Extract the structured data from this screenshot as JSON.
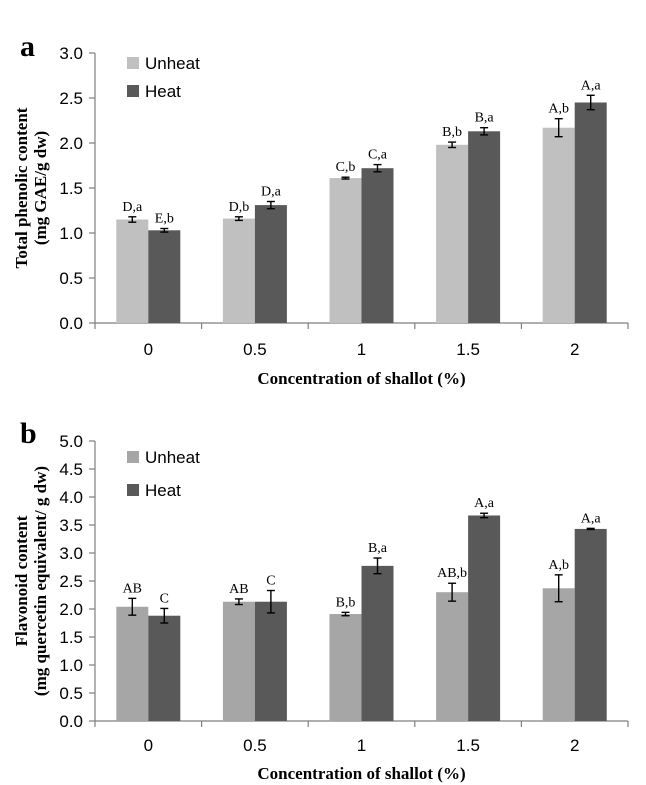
{
  "chart_data": [
    {
      "type": "bar",
      "panel_label": "a",
      "categories": [
        "0",
        "0.5",
        "1",
        "1.5",
        "2"
      ],
      "series": [
        {
          "name": "Unheat",
          "color": "#c0c0c0",
          "values": [
            1.15,
            1.16,
            1.61,
            1.98,
            2.17
          ],
          "errors": [
            0.03,
            0.02,
            0.01,
            0.03,
            0.1
          ],
          "labels": [
            "D,a",
            "D,b",
            "C,b",
            "B,b",
            "A,b"
          ]
        },
        {
          "name": "Heat",
          "color": "#595959",
          "values": [
            1.03,
            1.31,
            1.72,
            2.13,
            2.45
          ],
          "errors": [
            0.02,
            0.04,
            0.04,
            0.04,
            0.08
          ],
          "labels": [
            "E,b",
            "D,a",
            "C,a",
            "B,a",
            "A,a"
          ]
        }
      ],
      "ylim": [
        0,
        3.0
      ],
      "yticks": [
        "0.0",
        "0.5",
        "1.0",
        "1.5",
        "2.0",
        "2.5",
        "3.0"
      ],
      "xlabel": "Concentration of  shallot (%)",
      "ylabel_line1": "Total phenolic content",
      "ylabel_line2": "(mg GAE/g dw)",
      "legend": "top-left"
    },
    {
      "type": "bar",
      "panel_label": "b",
      "categories": [
        "0",
        "0.5",
        "1",
        "1.5",
        "2"
      ],
      "series": [
        {
          "name": "Unheat",
          "color": "#a6a6a6",
          "values": [
            2.04,
            2.13,
            1.91,
            2.3,
            2.37
          ],
          "errors": [
            0.15,
            0.05,
            0.03,
            0.16,
            0.24
          ],
          "labels": [
            "AB",
            "AB",
            "B,b",
            "AB,b",
            "A,b"
          ]
        },
        {
          "name": "Heat",
          "color": "#595959",
          "values": [
            1.88,
            2.13,
            2.77,
            3.67,
            3.43
          ],
          "errors": [
            0.13,
            0.2,
            0.14,
            0.04,
            0.01
          ],
          "labels": [
            "C",
            "C",
            "B,a",
            "A,a",
            "A,a"
          ]
        }
      ],
      "ylim": [
        0,
        5.0
      ],
      "yticks": [
        "0.0",
        "0.5",
        "1.0",
        "1.5",
        "2.0",
        "2.5",
        "3.0",
        "3.5",
        "4.0",
        "4.5",
        "5.0"
      ],
      "xlabel": "Concentration of  shallot (%)",
      "ylabel_line1": "Flavonoid content",
      "ylabel_line2": "(mg quercetin equivalent/ g dw)",
      "legend": "top-left"
    }
  ]
}
